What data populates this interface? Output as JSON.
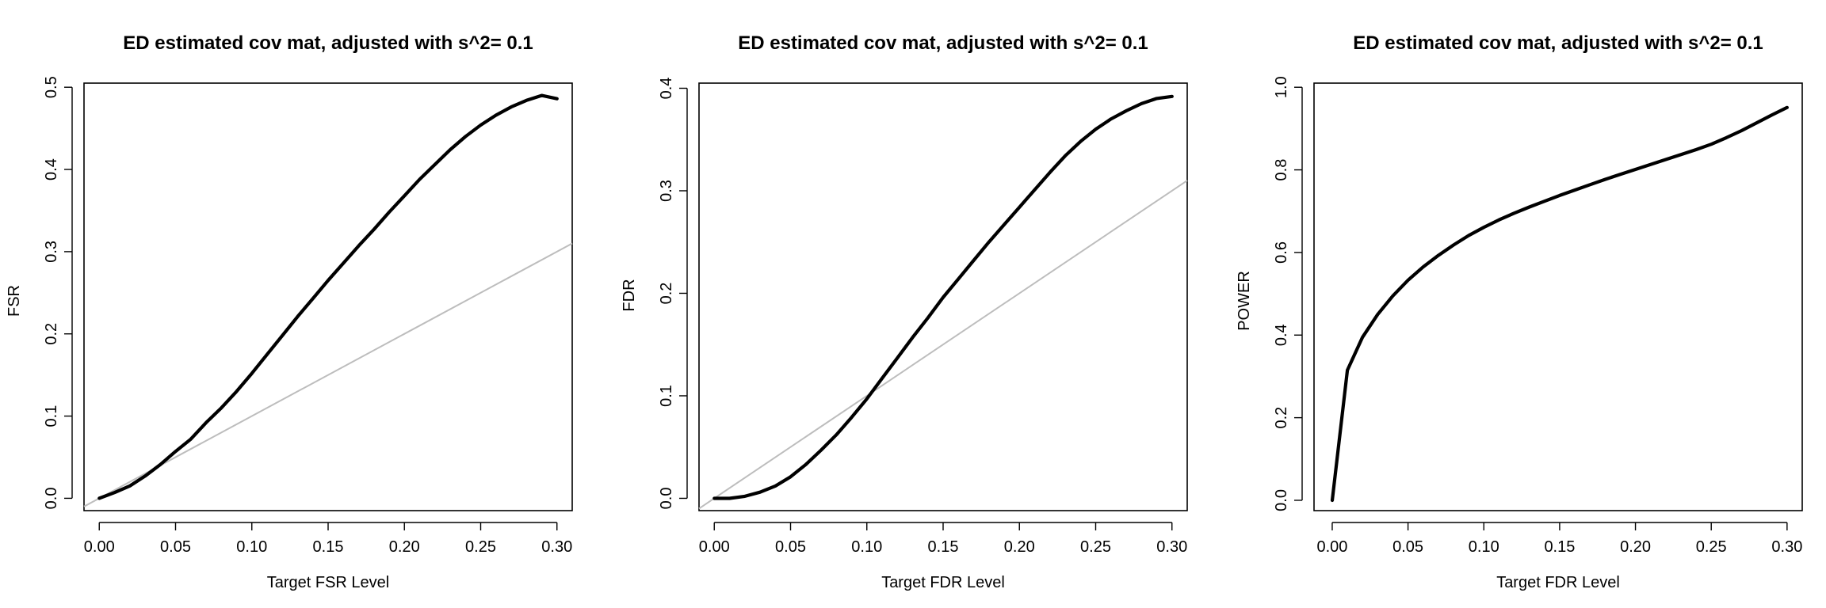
{
  "chart_data": [
    {
      "type": "line",
      "title": "ED estimated cov mat, adjusted with s^2= 0.1",
      "xlabel": "Target FSR Level",
      "ylabel": "FSR",
      "xlim": [
        -0.01,
        0.31
      ],
      "ylim": [
        -0.015,
        0.505
      ],
      "xticks": [
        "0.00",
        "0.05",
        "0.10",
        "0.15",
        "0.20",
        "0.25",
        "0.30"
      ],
      "yticks": [
        "0.0",
        "0.1",
        "0.2",
        "0.3",
        "0.4",
        "0.5"
      ],
      "grid": false,
      "reference_line": "y = x",
      "series": [
        {
          "x": [
            0.0,
            0.01,
            0.02,
            0.03,
            0.04,
            0.05,
            0.06,
            0.07,
            0.08,
            0.09,
            0.1,
            0.11,
            0.12,
            0.13,
            0.14,
            0.15,
            0.16,
            0.17,
            0.18,
            0.19,
            0.2,
            0.21,
            0.22,
            0.23,
            0.24,
            0.25,
            0.26,
            0.27,
            0.28,
            0.29,
            0.3
          ],
          "y": [
            0.0,
            0.007,
            0.015,
            0.027,
            0.041,
            0.057,
            0.072,
            0.092,
            0.11,
            0.13,
            0.152,
            0.175,
            0.198,
            0.221,
            0.243,
            0.265,
            0.286,
            0.307,
            0.327,
            0.348,
            0.368,
            0.388,
            0.406,
            0.424,
            0.44,
            0.454,
            0.466,
            0.476,
            0.484,
            0.49,
            0.486
          ]
        }
      ]
    },
    {
      "type": "line",
      "title": "ED estimated cov mat, adjusted with s^2= 0.1",
      "xlabel": "Target FDR Level",
      "ylabel": "FDR",
      "xlim": [
        -0.01,
        0.31
      ],
      "ylim": [
        -0.012,
        0.405
      ],
      "xticks": [
        "0.00",
        "0.05",
        "0.10",
        "0.15",
        "0.20",
        "0.25",
        "0.30"
      ],
      "yticks": [
        "0.0",
        "0.1",
        "0.2",
        "0.3",
        "0.4"
      ],
      "grid": false,
      "reference_line": "y = x",
      "series": [
        {
          "x": [
            0.0,
            0.01,
            0.02,
            0.03,
            0.04,
            0.05,
            0.06,
            0.07,
            0.08,
            0.09,
            0.1,
            0.11,
            0.12,
            0.13,
            0.14,
            0.15,
            0.16,
            0.17,
            0.18,
            0.19,
            0.2,
            0.21,
            0.22,
            0.23,
            0.24,
            0.25,
            0.26,
            0.27,
            0.28,
            0.29,
            0.3
          ],
          "y": [
            0.0,
            0.0,
            0.002,
            0.006,
            0.012,
            0.021,
            0.033,
            0.047,
            0.062,
            0.079,
            0.097,
            0.117,
            0.137,
            0.157,
            0.176,
            0.196,
            0.214,
            0.232,
            0.25,
            0.267,
            0.284,
            0.301,
            0.318,
            0.334,
            0.348,
            0.36,
            0.37,
            0.378,
            0.385,
            0.39,
            0.392
          ]
        }
      ]
    },
    {
      "type": "line",
      "title": "ED estimated cov mat, adjusted with s^2= 0.1",
      "xlabel": "Target FDR Level",
      "ylabel": "POWER",
      "xlim": [
        -0.012,
        0.31
      ],
      "ylim": [
        -0.025,
        1.01
      ],
      "xticks": [
        "0.00",
        "0.05",
        "0.10",
        "0.15",
        "0.20",
        "0.25",
        "0.30"
      ],
      "yticks": [
        "0.0",
        "0.2",
        "0.4",
        "0.6",
        "0.8",
        "1.0"
      ],
      "grid": false,
      "series": [
        {
          "x": [
            0.0,
            0.01,
            0.02,
            0.03,
            0.04,
            0.05,
            0.06,
            0.07,
            0.08,
            0.09,
            0.1,
            0.11,
            0.12,
            0.13,
            0.14,
            0.15,
            0.16,
            0.17,
            0.18,
            0.19,
            0.2,
            0.21,
            0.22,
            0.23,
            0.24,
            0.25,
            0.26,
            0.27,
            0.28,
            0.29,
            0.3
          ],
          "y": [
            0.0,
            0.315,
            0.395,
            0.45,
            0.495,
            0.533,
            0.565,
            0.593,
            0.618,
            0.641,
            0.661,
            0.679,
            0.695,
            0.71,
            0.724,
            0.738,
            0.751,
            0.764,
            0.777,
            0.789,
            0.801,
            0.813,
            0.825,
            0.837,
            0.849,
            0.862,
            0.878,
            0.895,
            0.914,
            0.933,
            0.951
          ]
        }
      ]
    }
  ]
}
